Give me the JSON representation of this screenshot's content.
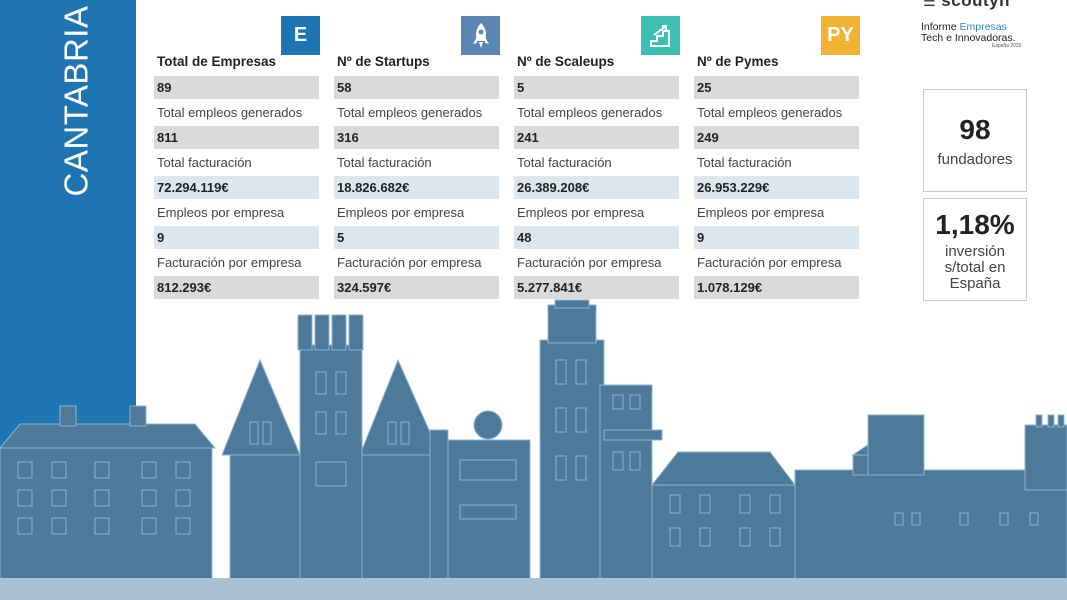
{
  "region": "CANTABRIA",
  "logo": {
    "brand": "scoutyn",
    "line1_a": "Informe",
    "line1_b": "Empresas",
    "line2": "Tech e Innovadoras.",
    "line3": "España 2025"
  },
  "columns": [
    {
      "icon": "E",
      "icon_name": "empresas-icon",
      "icon_color": "#1f75b1",
      "title": "Total de Empresas",
      "count": "89",
      "rows": [
        {
          "label": "Total empleos generados",
          "value": "811"
        },
        {
          "label": "Total facturación",
          "value": "72.294.119€"
        },
        {
          "label": "Empleos por empresa",
          "value": "9"
        },
        {
          "label": "Facturación por empresa",
          "value": "812.293€"
        }
      ]
    },
    {
      "icon": "",
      "icon_name": "rocket-icon",
      "icon_color": "#5b86b3",
      "title": "Nº de Startups",
      "count": "58",
      "rows": [
        {
          "label": "Total empleos generados",
          "value": "316"
        },
        {
          "label": "Total facturación",
          "value": "18.826.682€"
        },
        {
          "label": "Empleos por empresa",
          "value": "5"
        },
        {
          "label": "Facturación por empresa",
          "value": "324.597€"
        }
      ]
    },
    {
      "icon": "",
      "icon_name": "growth-stairs-icon",
      "icon_color": "#3dbfb3",
      "title": "Nº de Scaleups",
      "count": "5",
      "rows": [
        {
          "label": "Total empleos generados",
          "value": "241"
        },
        {
          "label": "Total facturación",
          "value": "26.389.208€"
        },
        {
          "label": "Empleos por empresa",
          "value": "48"
        },
        {
          "label": "Facturación por empresa",
          "value": "5.277.841€"
        }
      ]
    },
    {
      "icon": "PY",
      "icon_name": "pymes-icon",
      "icon_color": "#f3b233",
      "title": "Nº de Pymes",
      "count": "25",
      "rows": [
        {
          "label": "Total empleos generados",
          "value": "249"
        },
        {
          "label": "Total facturación",
          "value": "26.953.229€"
        },
        {
          "label": "Empleos por empresa",
          "value": "9"
        },
        {
          "label": "Facturación por empresa",
          "value": "1.078.129€"
        }
      ]
    }
  ],
  "stats": {
    "founders_value": "98",
    "founders_label": "fundadores",
    "investment_value": "1,18%",
    "investment_label_1": "inversión",
    "investment_label_2": "s/total en",
    "investment_label_3": "España"
  },
  "colors": {
    "band": "#1f75b1",
    "skyline_fill": "#4d7a9a",
    "skyline_stroke": "#8fb3cc",
    "row_gray": "#dadada",
    "row_blue": "#dce6ef"
  }
}
